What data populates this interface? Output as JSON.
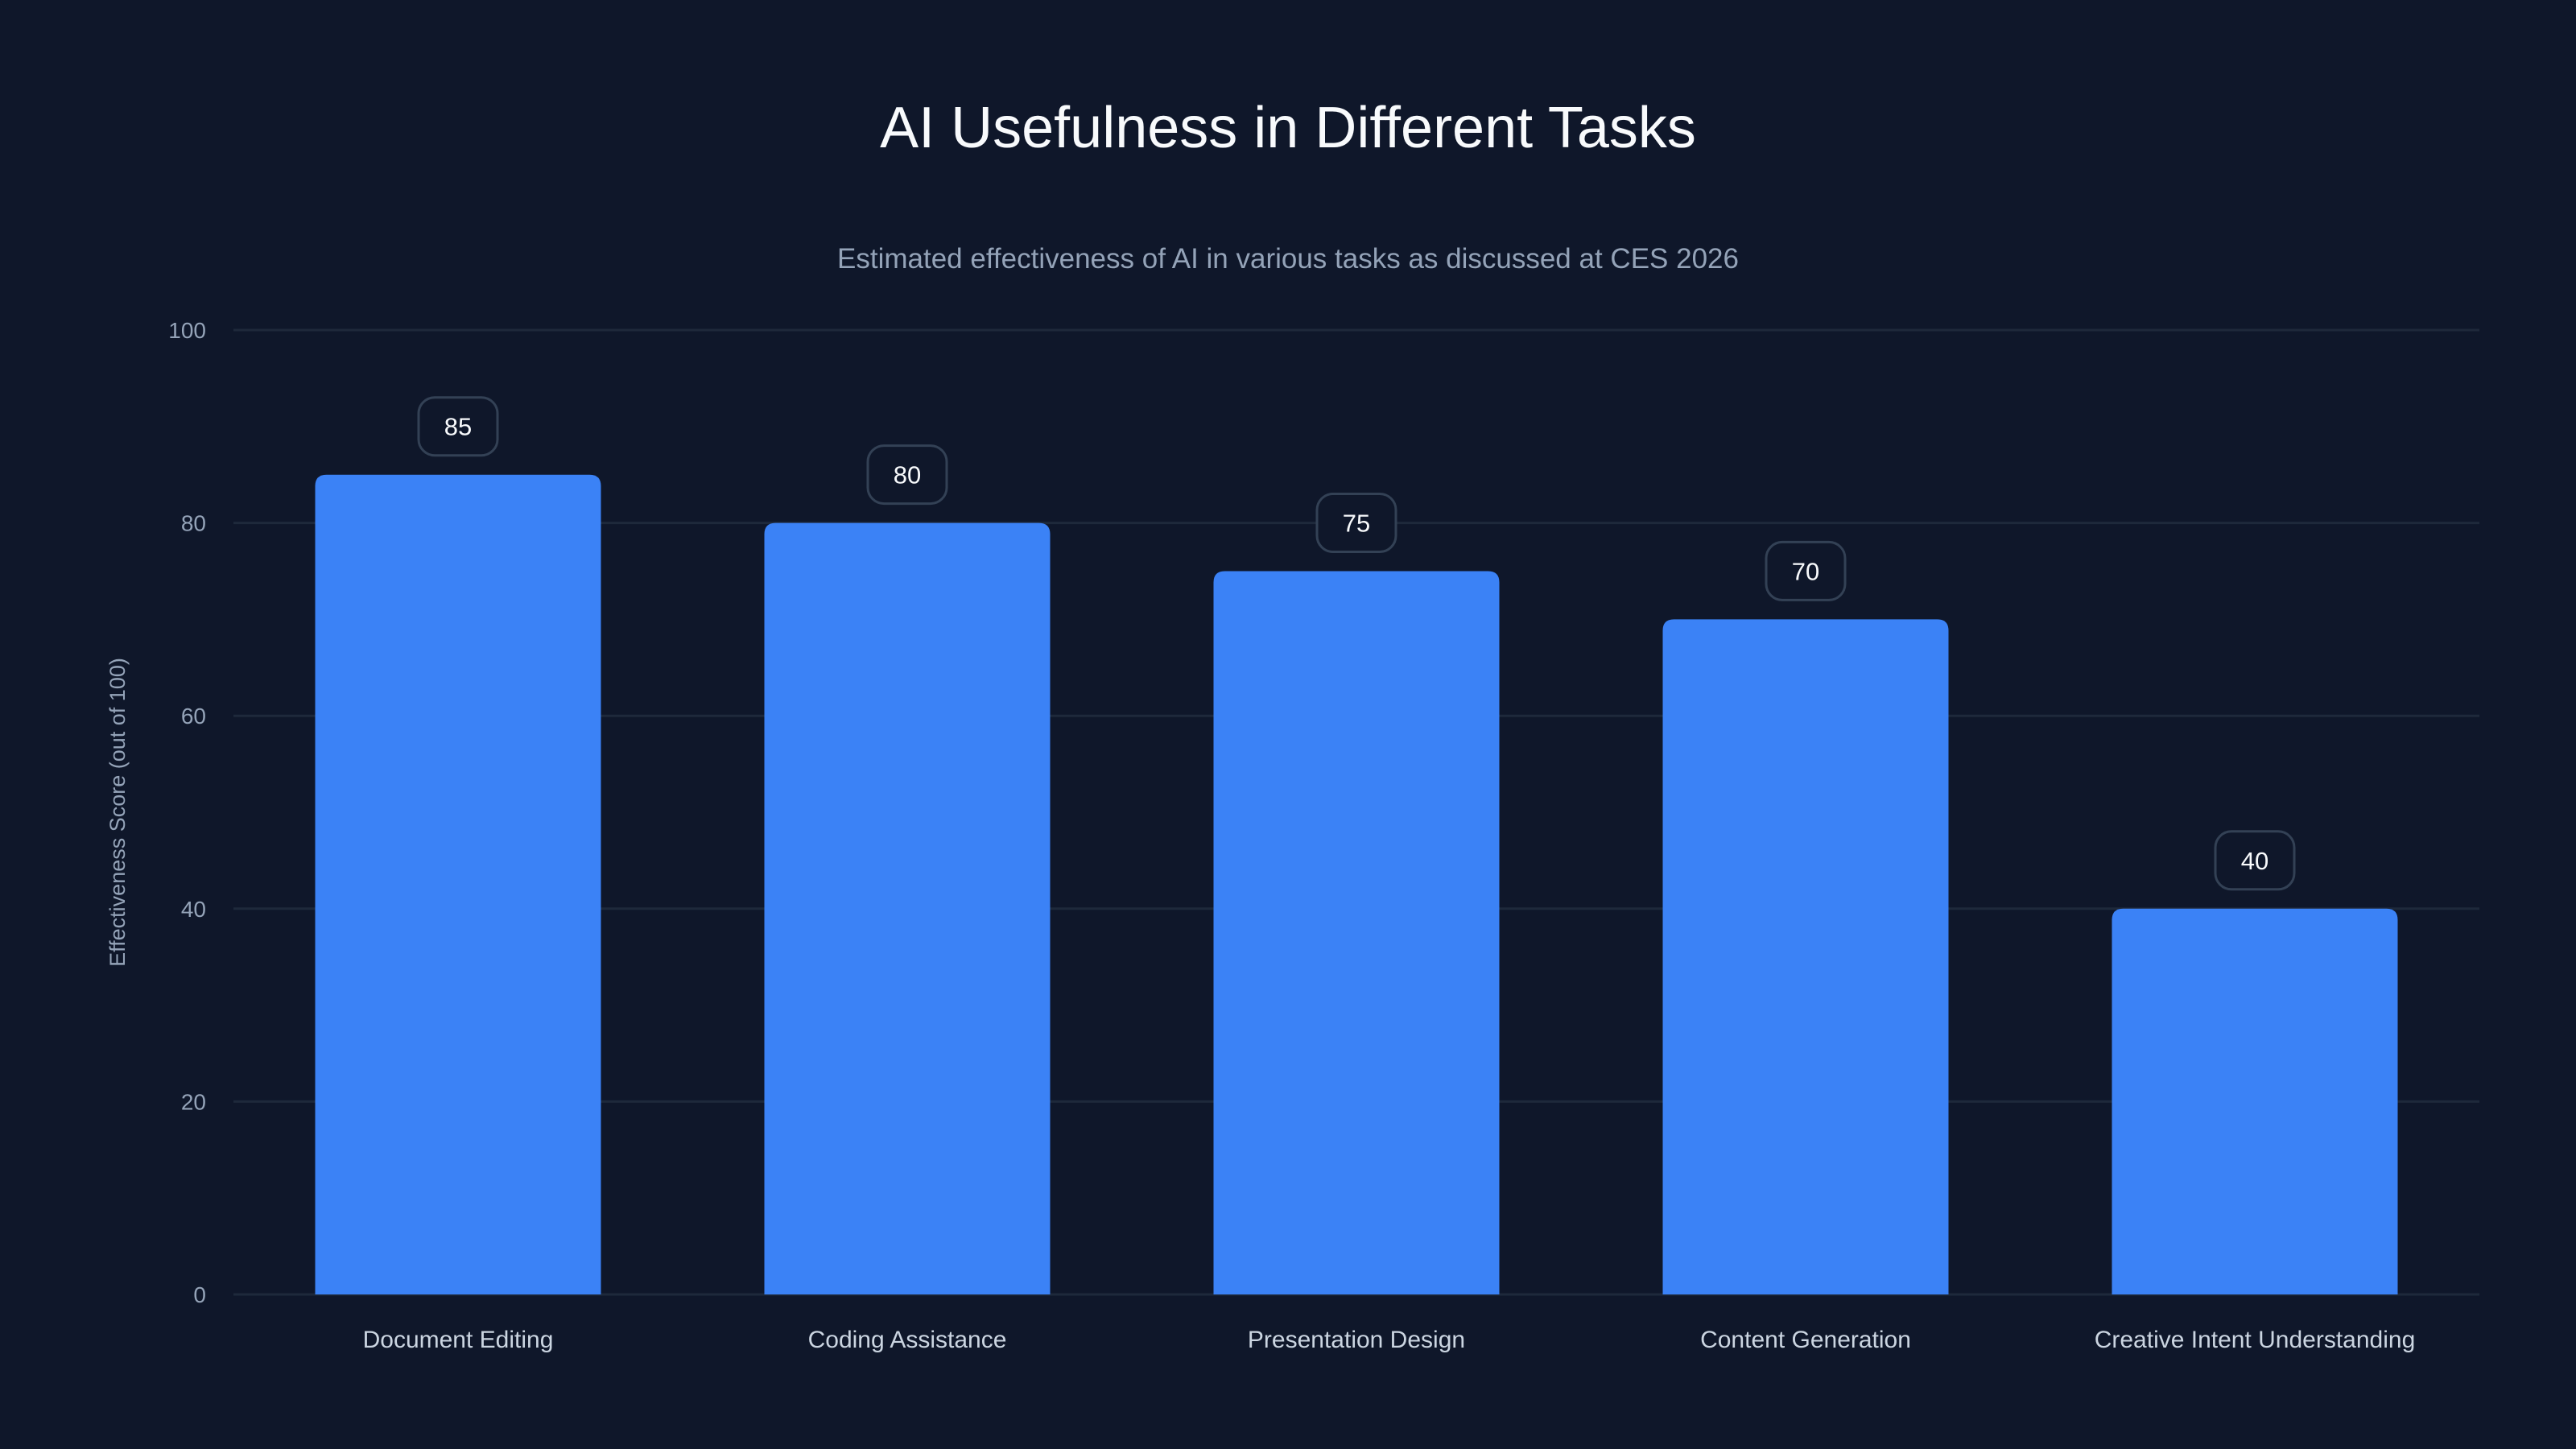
{
  "chart_data": {
    "type": "bar",
    "title": "AI Usefulness in Different Tasks",
    "subtitle": "Estimated effectiveness of AI in various tasks as discussed at CES 2026",
    "xlabel": "",
    "ylabel": "Effectiveness Score (out of 100)",
    "categories": [
      "Document Editing",
      "Coding Assistance",
      "Presentation Design",
      "Content Generation",
      "Creative Intent Understanding"
    ],
    "values": [
      85,
      80,
      75,
      70,
      40
    ],
    "ylim": [
      0,
      100
    ],
    "yticks": [
      0,
      20,
      40,
      60,
      80,
      100
    ],
    "grid": true,
    "data_labels": true,
    "colors": {
      "bar": "#3b82f6",
      "background": "#0f172a",
      "grid": "#1e293b"
    }
  }
}
